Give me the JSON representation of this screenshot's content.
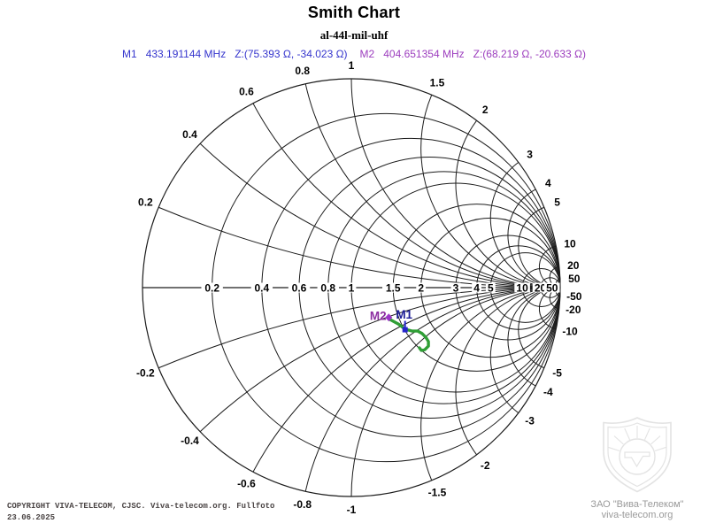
{
  "header": {
    "title": "Smith Chart",
    "subtitle": "al-44l-mil-uhf",
    "markers": [
      {
        "id": "M1",
        "frequency": "433.191144 MHz",
        "impedance": "Z:(75.393 Ω, -34.023 Ω)",
        "color": "#3434cd"
      },
      {
        "id": "M2",
        "frequency": "404.651354 MHz",
        "impedance": "Z:(68.219 Ω, -20.633 Ω)",
        "color": "#9c3dbe"
      }
    ]
  },
  "chart_data": {
    "type": "smith",
    "title": "Smith Chart",
    "subtitle": "al-44l-mil-uhf",
    "normalization_ohms": 50,
    "grid_color": "#1c1c1c",
    "label_color": "#000000",
    "resistance_circles": [
      0.2,
      0.4,
      0.6,
      0.8,
      1,
      1.5,
      2,
      3,
      4,
      5,
      10,
      20,
      50
    ],
    "resistance_axis_labels": [
      "0.2",
      "0.4",
      "0.6",
      "0.8",
      "1",
      "1.5",
      "2",
      "3",
      "4",
      "5",
      "10",
      "20",
      "50"
    ],
    "reactance_arcs": [
      0.2,
      0.4,
      0.6,
      0.8,
      1,
      1.5,
      2,
      3,
      4,
      5,
      10,
      20,
      50
    ],
    "reactance_rim_labels_upper": [
      "0.2",
      "0.4",
      "0.6",
      "0.8",
      "1",
      "1.5",
      "2",
      "3",
      "4",
      "5",
      "10",
      "20",
      "50"
    ],
    "reactance_rim_labels_lower": [
      "-0.2",
      "-0.4",
      "-0.6",
      "-0.8",
      "-1",
      "-1.5",
      "-2",
      "-3",
      "-4",
      "-5",
      "-10",
      "-20",
      "-50"
    ],
    "markers": [
      {
        "id": "M1",
        "frequency_mhz": 433.191144,
        "z_real_ohms": 75.393,
        "z_imag_ohms": -34.023,
        "symbol": "square",
        "marker_color": "#2525cc",
        "label_color": "#1c1c96",
        "label_offset": [
          -1,
          -17
        ]
      },
      {
        "id": "M2",
        "frequency_mhz": 404.651354,
        "z_real_ohms": 68.219,
        "z_imag_ohms": -20.633,
        "symbol": "diamond",
        "marker_color": "#9c35c8",
        "label_color": "#8c2da0",
        "label_offset": [
          -12,
          -2
        ]
      }
    ],
    "trace": {
      "color": "#2f9e35",
      "gamma_points": [
        [
          0.186,
          -0.153
        ],
        [
          0.225,
          -0.174
        ],
        [
          0.258,
          -0.199
        ],
        [
          0.292,
          -0.208
        ],
        [
          0.318,
          -0.208
        ],
        [
          0.339,
          -0.22
        ],
        [
          0.356,
          -0.237
        ],
        [
          0.369,
          -0.258
        ],
        [
          0.369,
          -0.28
        ],
        [
          0.352,
          -0.297
        ],
        [
          0.335,
          -0.301
        ],
        [
          0.326,
          -0.288
        ]
      ]
    }
  },
  "footer": {
    "copyright_line1": "COPYRIGHT VIVA-TELECOM, CJSC. Viva-telecom.org. Fullfoto",
    "copyright_line2": "23.06.2025",
    "color": "#4a4444"
  },
  "logo": {
    "org": "ЗАО \"Вива-Телеком\"",
    "url": "viva-telecom.org",
    "text_color": "#9a9a9a",
    "shield_color": "#e3e3e3"
  }
}
